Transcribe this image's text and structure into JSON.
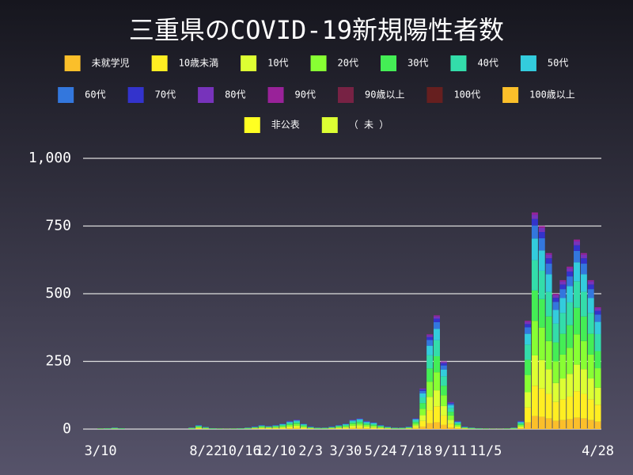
{
  "chart_data": {
    "type": "stacked_bar",
    "title": "三重県のCOVID-19新規陽性者数",
    "categories": [
      null,
      null,
      "3/10",
      null,
      null,
      null,
      null,
      null,
      null,
      null,
      null,
      null,
      null,
      null,
      null,
      null,
      null,
      "8/22",
      null,
      null,
      null,
      null,
      "10/16",
      null,
      null,
      null,
      null,
      "12/10",
      null,
      null,
      null,
      null,
      "2/3",
      null,
      null,
      null,
      null,
      "3/30",
      null,
      null,
      null,
      null,
      "5/24",
      null,
      null,
      null,
      null,
      "7/18",
      null,
      null,
      null,
      null,
      "9/11",
      null,
      null,
      null,
      null,
      "11/5",
      null,
      null,
      null,
      null,
      null,
      null,
      null,
      null,
      null,
      null,
      null,
      null,
      null,
      null,
      null,
      "4/28"
    ],
    "series": [
      {
        "name": "未就学児",
        "color": "#fbbf2a",
        "values": [
          0,
          0,
          0,
          0,
          0,
          0,
          0,
          0,
          0,
          0,
          0,
          0,
          0,
          0,
          0,
          0,
          1,
          0,
          0,
          0,
          0,
          0,
          0,
          0,
          1,
          1,
          1,
          1,
          1,
          2,
          2,
          1,
          1,
          0,
          0,
          1,
          1,
          1,
          2,
          2,
          2,
          1,
          1,
          1,
          0,
          0,
          1,
          2,
          9,
          21,
          25,
          15,
          6,
          2,
          1,
          0,
          0,
          0,
          0,
          0,
          0,
          0,
          2,
          24,
          48,
          45,
          39,
          30,
          33,
          36,
          42,
          39,
          33,
          27
        ]
      },
      {
        "name": "10歳未満",
        "color": "#ffee22",
        "values": [
          0,
          0,
          0,
          0,
          0,
          0,
          0,
          0,
          0,
          0,
          0,
          0,
          0,
          0,
          0,
          0,
          2,
          1,
          0,
          0,
          0,
          0,
          0,
          0,
          1,
          2,
          2,
          2,
          3,
          4,
          5,
          3,
          1,
          0,
          0,
          1,
          2,
          3,
          5,
          6,
          4,
          3,
          2,
          1,
          0,
          0,
          1,
          6,
          21,
          49,
          59,
          35,
          14,
          4,
          1,
          0,
          0,
          0,
          0,
          0,
          0,
          0,
          4,
          56,
          112,
          105,
          91,
          70,
          77,
          84,
          98,
          91,
          77,
          63
        ]
      },
      {
        "name": "10代",
        "color": "#ddff33",
        "values": [
          0,
          0,
          0,
          0,
          1,
          0,
          0,
          0,
          0,
          0,
          0,
          0,
          0,
          0,
          0,
          1,
          2,
          1,
          0,
          0,
          0,
          0,
          0,
          1,
          1,
          2,
          2,
          2,
          3,
          4,
          5,
          3,
          1,
          1,
          1,
          1,
          2,
          3,
          5,
          6,
          4,
          4,
          2,
          1,
          1,
          1,
          1,
          6,
          21,
          49,
          59,
          35,
          14,
          4,
          1,
          1,
          0,
          0,
          0,
          0,
          0,
          1,
          4,
          56,
          112,
          105,
          91,
          70,
          77,
          84,
          98,
          91,
          77,
          63
        ]
      },
      {
        "name": "20代",
        "color": "#88ff33",
        "values": [
          0,
          0,
          1,
          1,
          1,
          1,
          0,
          0,
          0,
          0,
          0,
          0,
          0,
          0,
          0,
          1,
          3,
          2,
          1,
          1,
          1,
          1,
          1,
          1,
          2,
          3,
          2,
          3,
          3,
          5,
          6,
          3,
          2,
          1,
          1,
          2,
          3,
          3,
          6,
          6,
          5,
          4,
          3,
          2,
          1,
          1,
          2,
          6,
          24,
          56,
          67,
          40,
          16,
          5,
          2,
          1,
          1,
          1,
          1,
          1,
          1,
          1,
          5,
          64,
          128,
          120,
          104,
          80,
          88,
          96,
          112,
          104,
          88,
          72
        ]
      },
      {
        "name": "30代",
        "color": "#44ee55",
        "values": [
          0,
          0,
          1,
          1,
          1,
          1,
          0,
          0,
          0,
          0,
          0,
          0,
          0,
          0,
          0,
          1,
          2,
          1,
          1,
          1,
          0,
          1,
          1,
          1,
          1,
          2,
          1,
          2,
          3,
          4,
          5,
          3,
          1,
          1,
          1,
          1,
          2,
          3,
          5,
          6,
          4,
          4,
          2,
          1,
          1,
          1,
          1,
          6,
          21,
          49,
          59,
          35,
          14,
          4,
          1,
          1,
          1,
          1,
          0,
          0,
          1,
          1,
          4,
          56,
          112,
          105,
          91,
          70,
          77,
          84,
          98,
          91,
          77,
          63
        ]
      },
      {
        "name": "40代",
        "color": "#33ddaa",
        "values": [
          0,
          0,
          0,
          1,
          1,
          1,
          0,
          0,
          0,
          0,
          0,
          0,
          0,
          0,
          0,
          1,
          2,
          1,
          1,
          0,
          0,
          0,
          1,
          1,
          1,
          2,
          1,
          2,
          3,
          4,
          5,
          3,
          1,
          1,
          1,
          1,
          2,
          3,
          5,
          6,
          4,
          3,
          2,
          1,
          1,
          1,
          1,
          6,
          21,
          49,
          59,
          35,
          14,
          4,
          1,
          1,
          1,
          0,
          0,
          0,
          0,
          1,
          4,
          56,
          112,
          105,
          91,
          70,
          77,
          84,
          98,
          91,
          77,
          63
        ]
      },
      {
        "name": "50代",
        "color": "#33ccdd",
        "values": [
          0,
          0,
          0,
          0,
          1,
          0,
          0,
          0,
          0,
          0,
          0,
          0,
          0,
          0,
          0,
          1,
          1,
          1,
          0,
          0,
          0,
          0,
          0,
          1,
          1,
          1,
          1,
          1,
          2,
          3,
          3,
          2,
          1,
          1,
          1,
          1,
          1,
          2,
          3,
          4,
          3,
          3,
          1,
          1,
          1,
          1,
          1,
          4,
          15,
          35,
          42,
          25,
          10,
          3,
          1,
          1,
          0,
          0,
          0,
          0,
          0,
          1,
          3,
          40,
          80,
          75,
          65,
          50,
          55,
          60,
          70,
          65,
          55,
          45
        ]
      },
      {
        "name": "60代",
        "color": "#3377dd",
        "values": [
          0,
          0,
          0,
          0,
          0,
          0,
          0,
          0,
          0,
          0,
          0,
          0,
          0,
          0,
          0,
          0,
          1,
          1,
          0,
          0,
          0,
          0,
          0,
          0,
          1,
          1,
          1,
          1,
          1,
          2,
          2,
          1,
          1,
          0,
          0,
          1,
          1,
          1,
          2,
          2,
          2,
          2,
          1,
          1,
          0,
          0,
          1,
          2,
          9,
          21,
          25,
          15,
          6,
          2,
          1,
          0,
          0,
          0,
          0,
          0,
          0,
          0,
          2,
          24,
          48,
          45,
          39,
          30,
          33,
          36,
          42,
          39,
          33,
          27
        ]
      },
      {
        "name": "70代",
        "color": "#3333cc",
        "values": [
          0,
          0,
          0,
          0,
          0,
          0,
          0,
          0,
          0,
          0,
          0,
          0,
          0,
          0,
          0,
          0,
          1,
          0,
          0,
          0,
          0,
          0,
          0,
          0,
          1,
          1,
          1,
          1,
          1,
          1,
          1,
          1,
          1,
          0,
          0,
          1,
          1,
          1,
          1,
          1,
          1,
          1,
          1,
          1,
          0,
          0,
          1,
          1,
          5,
          11,
          13,
          8,
          3,
          1,
          1,
          0,
          0,
          0,
          0,
          0,
          0,
          0,
          1,
          12,
          24,
          23,
          20,
          15,
          17,
          18,
          21,
          20,
          17,
          14
        ]
      },
      {
        "name": "80代",
        "color": "#7733bb",
        "values": [
          0,
          0,
          0,
          0,
          0,
          0,
          0,
          0,
          0,
          0,
          0,
          0,
          0,
          0,
          0,
          0,
          0,
          0,
          0,
          0,
          0,
          0,
          0,
          0,
          0,
          0,
          0,
          0,
          0,
          1,
          1,
          0,
          0,
          0,
          0,
          0,
          0,
          0,
          1,
          1,
          1,
          0,
          0,
          0,
          0,
          0,
          0,
          1,
          3,
          7,
          8,
          5,
          2,
          1,
          0,
          0,
          0,
          0,
          0,
          0,
          0,
          0,
          1,
          8,
          16,
          15,
          13,
          10,
          11,
          12,
          14,
          13,
          11,
          9
        ]
      },
      {
        "name": "90代",
        "color": "#992299",
        "values": [
          0,
          0,
          0,
          0,
          0,
          0,
          0,
          0,
          0,
          0,
          0,
          0,
          0,
          0,
          0,
          0,
          0,
          0,
          0,
          0,
          0,
          0,
          0,
          0,
          0,
          0,
          0,
          0,
          0,
          0,
          0,
          0,
          0,
          0,
          0,
          0,
          0,
          0,
          0,
          0,
          0,
          0,
          0,
          0,
          0,
          0,
          0,
          0,
          1,
          3,
          4,
          2,
          1,
          0,
          0,
          0,
          0,
          0,
          0,
          0,
          0,
          0,
          0,
          4,
          8,
          7,
          6,
          5,
          5,
          6,
          7,
          6,
          5,
          4
        ]
      },
      {
        "name": "90歳以上",
        "color": "#772244",
        "values": [
          0,
          0,
          0,
          0,
          0,
          0,
          0,
          0,
          0,
          0,
          0,
          0,
          0,
          0,
          0,
          0,
          0,
          0,
          0,
          0,
          0,
          0,
          0,
          0,
          0,
          0,
          0,
          0,
          0,
          0,
          0,
          0,
          0,
          0,
          0,
          0,
          0,
          0,
          0,
          0,
          0,
          0,
          0,
          0,
          0,
          0,
          0,
          0,
          0,
          0,
          0,
          0,
          0,
          0,
          0,
          0,
          0,
          0,
          0,
          0,
          0,
          0,
          0,
          0,
          0,
          0,
          0,
          0,
          0,
          0,
          0,
          0,
          0,
          0
        ]
      },
      {
        "name": "100代",
        "color": "#661f1f",
        "values": [
          0,
          0,
          0,
          0,
          0,
          0,
          0,
          0,
          0,
          0,
          0,
          0,
          0,
          0,
          0,
          0,
          0,
          0,
          0,
          0,
          0,
          0,
          0,
          0,
          0,
          0,
          0,
          0,
          0,
          0,
          0,
          0,
          0,
          0,
          0,
          0,
          0,
          0,
          0,
          0,
          0,
          0,
          0,
          0,
          0,
          0,
          0,
          0,
          0,
          0,
          0,
          0,
          0,
          0,
          0,
          0,
          0,
          0,
          0,
          0,
          0,
          0,
          0,
          0,
          0,
          0,
          0,
          0,
          0,
          0,
          0,
          0,
          0,
          0
        ]
      },
      {
        "name": "100歳以上",
        "color": "#fbbf2a",
        "values": [
          0,
          0,
          0,
          0,
          0,
          0,
          0,
          0,
          0,
          0,
          0,
          0,
          0,
          0,
          0,
          0,
          0,
          0,
          0,
          0,
          0,
          0,
          0,
          0,
          0,
          0,
          0,
          0,
          0,
          0,
          0,
          0,
          0,
          0,
          0,
          0,
          0,
          0,
          0,
          0,
          0,
          0,
          0,
          0,
          0,
          0,
          0,
          0,
          0,
          0,
          0,
          0,
          0,
          0,
          0,
          0,
          0,
          0,
          0,
          0,
          0,
          0,
          0,
          0,
          0,
          0,
          0,
          0,
          0,
          0,
          0,
          0,
          0,
          0
        ]
      },
      {
        "name": "非公表",
        "color": "#ffff22",
        "values": [
          0,
          0,
          0,
          0,
          0,
          0,
          0,
          0,
          0,
          0,
          0,
          0,
          0,
          0,
          0,
          0,
          0,
          0,
          0,
          0,
          0,
          0,
          0,
          0,
          0,
          0,
          0,
          0,
          0,
          0,
          0,
          0,
          0,
          0,
          0,
          0,
          0,
          0,
          0,
          0,
          0,
          0,
          0,
          0,
          0,
          0,
          0,
          0,
          0,
          0,
          0,
          0,
          0,
          0,
          0,
          0,
          0,
          0,
          0,
          0,
          0,
          0,
          0,
          0,
          0,
          0,
          0,
          0,
          0,
          0,
          0,
          0,
          0,
          0
        ]
      },
      {
        "name": "（ 未 ）",
        "color": "#ddff33",
        "values": [
          0,
          0,
          0,
          0,
          0,
          0,
          0,
          0,
          0,
          0,
          0,
          0,
          0,
          0,
          0,
          0,
          0,
          0,
          0,
          0,
          0,
          0,
          0,
          0,
          0,
          0,
          0,
          0,
          0,
          0,
          0,
          0,
          0,
          0,
          0,
          0,
          0,
          0,
          0,
          0,
          0,
          0,
          0,
          0,
          0,
          0,
          0,
          0,
          0,
          0,
          0,
          0,
          0,
          0,
          0,
          0,
          0,
          0,
          0,
          0,
          0,
          0,
          0,
          0,
          0,
          0,
          0,
          0,
          0,
          0,
          0,
          0,
          0,
          0
        ]
      }
    ],
    "ylim": [
      0,
      1000
    ],
    "yticks": [
      0,
      250,
      500,
      750,
      {
        "value": 1000,
        "label": "1,000"
      }
    ],
    "grid": true
  }
}
